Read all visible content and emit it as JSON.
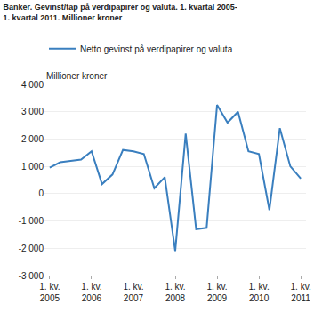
{
  "chart_data": {
    "type": "line",
    "title": "Banker. Gevinst/tap på verdipapirer og valuta. 1. kvartal 2005-\n1. kvartal 2011. Millioner kroner",
    "ylabel": "Millioner kroner",
    "categories": [
      "1. kv.\n2005",
      null,
      null,
      null,
      "1. kv.\n2006",
      null,
      null,
      null,
      "1. kv.\n2007",
      null,
      null,
      null,
      "1. kv.\n2008",
      null,
      null,
      null,
      "1. kv.\n2009",
      null,
      null,
      null,
      "1. kv.\n2010",
      null,
      null,
      null,
      "1. kv.\n2011"
    ],
    "series": [
      {
        "name": "Netto gevinst på verdipapirer og valuta",
        "color": "#3a7fbf",
        "values": [
          950,
          1150,
          1200,
          1250,
          1550,
          350,
          700,
          1600,
          1550,
          1450,
          200,
          600,
          -2100,
          2200,
          -1300,
          -1250,
          3250,
          2600,
          3000,
          1550,
          1450,
          -600,
          2400,
          1000,
          550
        ]
      }
    ],
    "ylim": [
      -3000,
      4000
    ],
    "yticks": [
      {
        "value": -3000,
        "label": "-3 000"
      },
      {
        "value": -2000,
        "label": "-2 000"
      },
      {
        "value": -1000,
        "label": "-1 000"
      },
      0,
      {
        "value": 1000,
        "label": "1 000"
      },
      {
        "value": 2000,
        "label": "2 000"
      },
      {
        "value": 3000,
        "label": "3 000"
      },
      {
        "value": 4000,
        "label": "4 000"
      }
    ],
    "grid": true,
    "legend": "top"
  }
}
